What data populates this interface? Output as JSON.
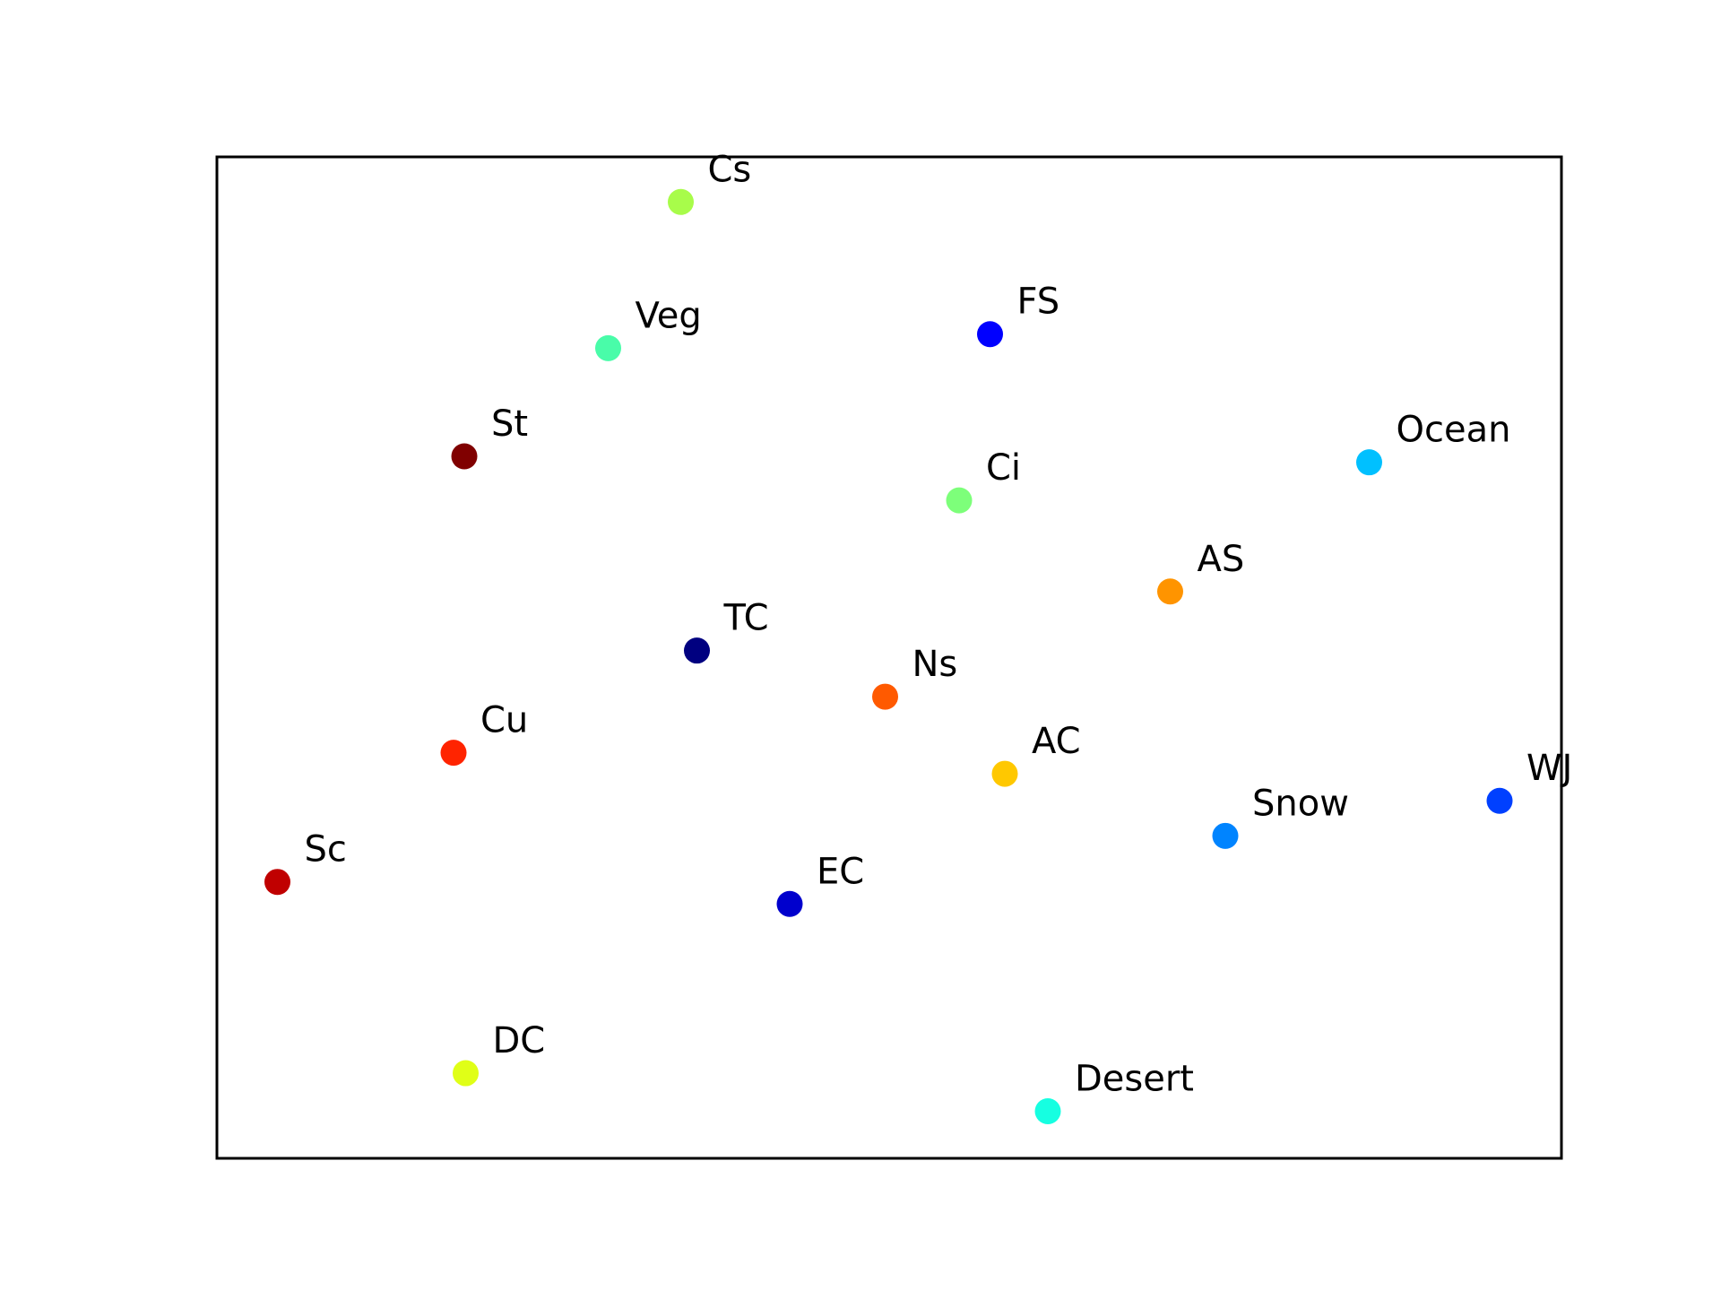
{
  "chart_data": {
    "type": "scatter",
    "title": "",
    "xlabel": "",
    "ylabel": "",
    "xlim": [
      0,
      1
    ],
    "ylim": [
      0,
      1
    ],
    "grid": false,
    "legend": "none",
    "ticks": false,
    "points": [
      {
        "label": "Cs",
        "x": 0.345,
        "y": 0.955,
        "color": "#a8fc4a"
      },
      {
        "label": "Veg",
        "x": 0.291,
        "y": 0.809,
        "color": "#49fca9"
      },
      {
        "label": "FS",
        "x": 0.575,
        "y": 0.823,
        "color": "#0000ff"
      },
      {
        "label": "St",
        "x": 0.184,
        "y": 0.701,
        "color": "#800000"
      },
      {
        "label": "Ocean",
        "x": 0.857,
        "y": 0.695,
        "color": "#00c0ff"
      },
      {
        "label": "Ci",
        "x": 0.552,
        "y": 0.657,
        "color": "#7dff7a"
      },
      {
        "label": "AS",
        "x": 0.709,
        "y": 0.566,
        "color": "#ff9400"
      },
      {
        "label": "TC",
        "x": 0.357,
        "y": 0.507,
        "color": "#000080"
      },
      {
        "label": "Ns",
        "x": 0.497,
        "y": 0.461,
        "color": "#ff5a00"
      },
      {
        "label": "Cu",
        "x": 0.176,
        "y": 0.405,
        "color": "#ff2400"
      },
      {
        "label": "AC",
        "x": 0.586,
        "y": 0.384,
        "color": "#ffc800"
      },
      {
        "label": "WJ",
        "x": 0.954,
        "y": 0.357,
        "color": "#0040ff"
      },
      {
        "label": "Snow",
        "x": 0.75,
        "y": 0.322,
        "color": "#0084ff"
      },
      {
        "label": "Sc",
        "x": 0.045,
        "y": 0.276,
        "color": "#c00000"
      },
      {
        "label": "EC",
        "x": 0.426,
        "y": 0.254,
        "color": "#0000cd"
      },
      {
        "label": "DC",
        "x": 0.185,
        "y": 0.085,
        "color": "#e0ff17"
      },
      {
        "label": "Desert",
        "x": 0.618,
        "y": 0.047,
        "color": "#16ffe1"
      }
    ]
  }
}
